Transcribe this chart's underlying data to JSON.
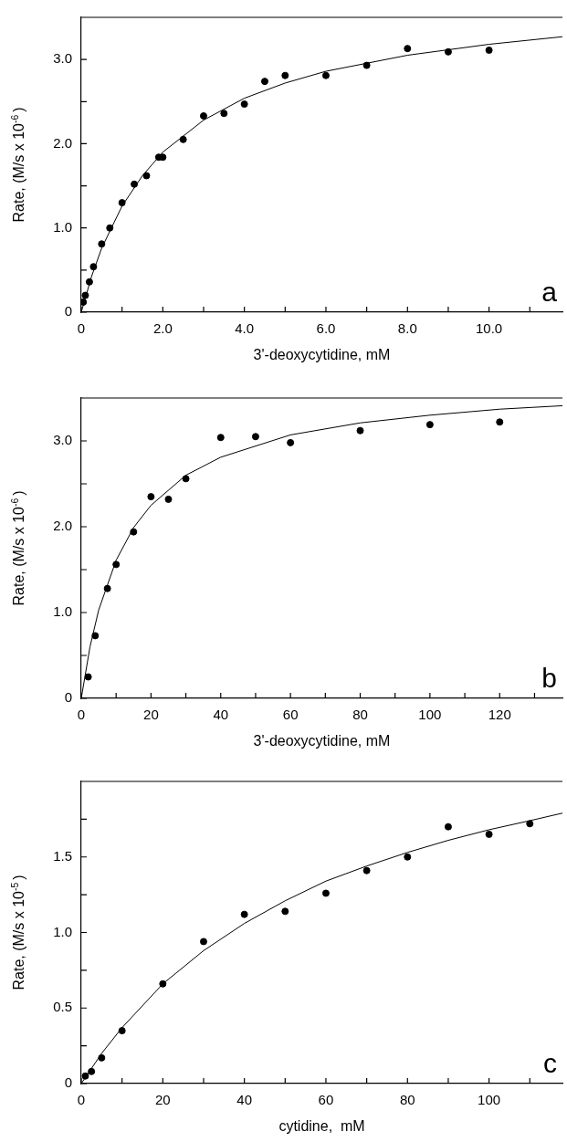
{
  "chart_data": [
    {
      "type": "scatter",
      "xlabel": "3'-deoxycytidine, mM",
      "ylabel": "Rate, (M/s x 10$^{-6}$)",
      "annotations": [
        "a"
      ],
      "grid": false,
      "legend": false,
      "xlim": [
        0,
        11.8
      ],
      "ylim": [
        0,
        3.5
      ],
      "xticks": [
        0,
        {
          "value": 1,
          "label": null
        },
        {
          "value": 2,
          "label": "2.0"
        },
        {
          "value": 3,
          "label": null
        },
        {
          "value": 4,
          "label": "4.0"
        },
        {
          "value": 5,
          "label": null
        },
        {
          "value": 6,
          "label": "6.0"
        },
        {
          "value": 7,
          "label": null
        },
        {
          "value": 8,
          "label": "8.0"
        },
        {
          "value": 9,
          "label": null
        },
        {
          "value": 10,
          "label": "10.0"
        },
        {
          "value": 11,
          "label": null
        }
      ],
      "yticks": [
        0,
        {
          "value": 0.5,
          "label": null
        },
        {
          "value": 1,
          "label": "1.0"
        },
        {
          "value": 1.5,
          "label": null
        },
        {
          "value": 2,
          "label": "2.0"
        },
        {
          "value": 2.5,
          "label": null
        },
        {
          "value": 3,
          "label": "3.0"
        }
      ],
      "series": [
        {
          "type": "scatter",
          "marker": "circle",
          "color": "#000000",
          "x": [
            0.05,
            0.1,
            0.2,
            0.3,
            0.5,
            0.7,
            1.0,
            1.3,
            1.6,
            1.9,
            2.0,
            2.5,
            3.0,
            3.5,
            4.0,
            4.5,
            5.0,
            6.0,
            7.0,
            8.0,
            9.0,
            10.0
          ],
          "values": [
            0.12,
            0.2,
            0.36,
            0.54,
            0.81,
            1.0,
            1.3,
            1.52,
            1.62,
            1.84,
            1.84,
            2.05,
            2.33,
            2.36,
            2.47,
            2.74,
            2.81,
            2.81,
            2.93,
            3.13,
            3.09,
            3.11
          ]
        },
        {
          "type": "line",
          "marker": "none",
          "color": "#000000",
          "x": [
            0,
            0.25,
            0.5,
            1,
            1.5,
            2,
            3,
            4,
            5,
            6,
            8,
            10,
            11.8
          ],
          "values": [
            0,
            0.42,
            0.76,
            1.26,
            1.62,
            1.9,
            2.28,
            2.54,
            2.72,
            2.86,
            3.05,
            3.18,
            3.27
          ]
        }
      ]
    },
    {
      "type": "scatter",
      "xlabel": "3'-deoxycytidine, mM",
      "ylabel": "Rate, (M/s x 10$^{-6}$)",
      "annotations": [
        "b"
      ],
      "grid": false,
      "legend": false,
      "xlim": [
        0,
        138
      ],
      "ylim": [
        0,
        3.5
      ],
      "xticks": [
        0,
        {
          "value": 10,
          "label": null
        },
        20,
        {
          "value": 30,
          "label": null
        },
        40,
        {
          "value": 50,
          "label": null
        },
        60,
        {
          "value": 70,
          "label": null
        },
        80,
        {
          "value": 90,
          "label": null
        },
        100,
        {
          "value": 110,
          "label": null
        },
        120,
        {
          "value": 130,
          "label": null
        }
      ],
      "yticks": [
        0,
        {
          "value": 0.5,
          "label": null
        },
        {
          "value": 1,
          "label": "1.0"
        },
        {
          "value": 1.5,
          "label": null
        },
        {
          "value": 2,
          "label": "2.0"
        },
        {
          "value": 2.5,
          "label": null
        },
        {
          "value": 3,
          "label": "3.0"
        }
      ],
      "series": [
        {
          "type": "scatter",
          "marker": "circle",
          "color": "#000000",
          "x": [
            2,
            4,
            7.5,
            10,
            15,
            20,
            25,
            30,
            40,
            50,
            60,
            80,
            100,
            120
          ],
          "values": [
            0.25,
            0.73,
            1.28,
            1.56,
            1.94,
            2.35,
            2.32,
            2.56,
            3.04,
            3.05,
            2.98,
            3.12,
            3.19,
            3.22
          ]
        },
        {
          "type": "line",
          "marker": "none",
          "color": "#000000",
          "x": [
            0,
            2.5,
            5,
            10,
            15,
            20,
            30,
            40,
            60,
            80,
            100,
            120,
            138
          ],
          "values": [
            0,
            0.6,
            1.03,
            1.61,
            1.99,
            2.25,
            2.6,
            2.81,
            3.07,
            3.21,
            3.3,
            3.37,
            3.41
          ]
        }
      ]
    },
    {
      "type": "scatter",
      "xlabel": "cytidine,  mM",
      "ylabel": "Rate, (M/s x 10$^{-5}$)",
      "annotations": [
        "c"
      ],
      "grid": false,
      "legend": false,
      "xlim": [
        0,
        118
      ],
      "ylim": [
        0,
        2.0
      ],
      "xticks": [
        0,
        {
          "value": 10,
          "label": null
        },
        20,
        {
          "value": 30,
          "label": null
        },
        40,
        {
          "value": 50,
          "label": null
        },
        60,
        {
          "value": 70,
          "label": null
        },
        80,
        {
          "value": 90,
          "label": null
        },
        100,
        {
          "value": 110,
          "label": null
        }
      ],
      "yticks": [
        0,
        {
          "value": 0.25,
          "label": null
        },
        0.5,
        {
          "value": 0.75,
          "label": null
        },
        {
          "value": 1,
          "label": "1.0"
        },
        {
          "value": 1.25,
          "label": null
        },
        1.5,
        {
          "value": 1.75,
          "label": null
        }
      ],
      "series": [
        {
          "type": "scatter",
          "marker": "circle",
          "color": "#000000",
          "x": [
            1,
            2.5,
            5,
            10,
            20,
            30,
            40,
            50,
            60,
            70,
            80,
            90,
            100,
            110
          ],
          "values": [
            0.05,
            0.08,
            0.17,
            0.35,
            0.66,
            0.94,
            1.12,
            1.14,
            1.26,
            1.41,
            1.5,
            1.7,
            1.65,
            1.72
          ]
        },
        {
          "type": "line",
          "marker": "none",
          "color": "#000000",
          "x": [
            0,
            5,
            10,
            20,
            30,
            40,
            50,
            60,
            70,
            80,
            90,
            100,
            110,
            118
          ],
          "values": [
            0,
            0.2,
            0.37,
            0.66,
            0.88,
            1.06,
            1.21,
            1.34,
            1.44,
            1.53,
            1.61,
            1.68,
            1.74,
            1.79
          ]
        }
      ]
    }
  ]
}
